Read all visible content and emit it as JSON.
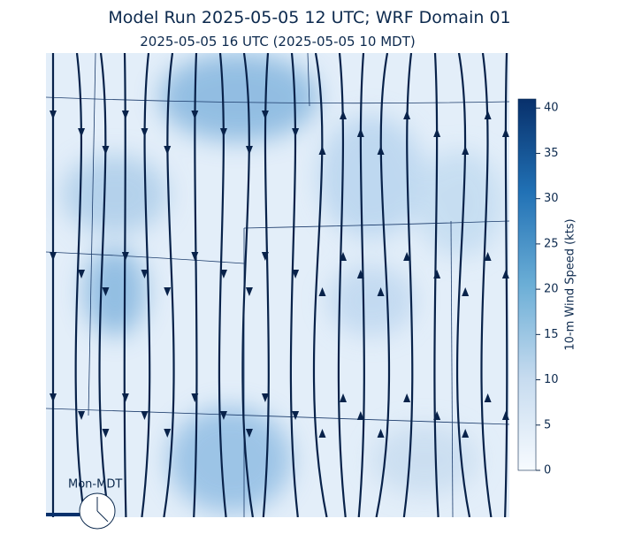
{
  "title": "Model Run 2025-05-05 12 UTC; WRF Domain 01",
  "subtitle": "2025-05-05 16 UTC  (2025-05-05 10 MDT)",
  "colorbar": {
    "label": "10-m Wind Speed (kts)",
    "lim": [
      0,
      41
    ],
    "ticks": [
      0,
      5,
      10,
      15,
      20,
      25,
      30,
      35,
      40
    ]
  },
  "clock_label": "Mon-MDT"
}
